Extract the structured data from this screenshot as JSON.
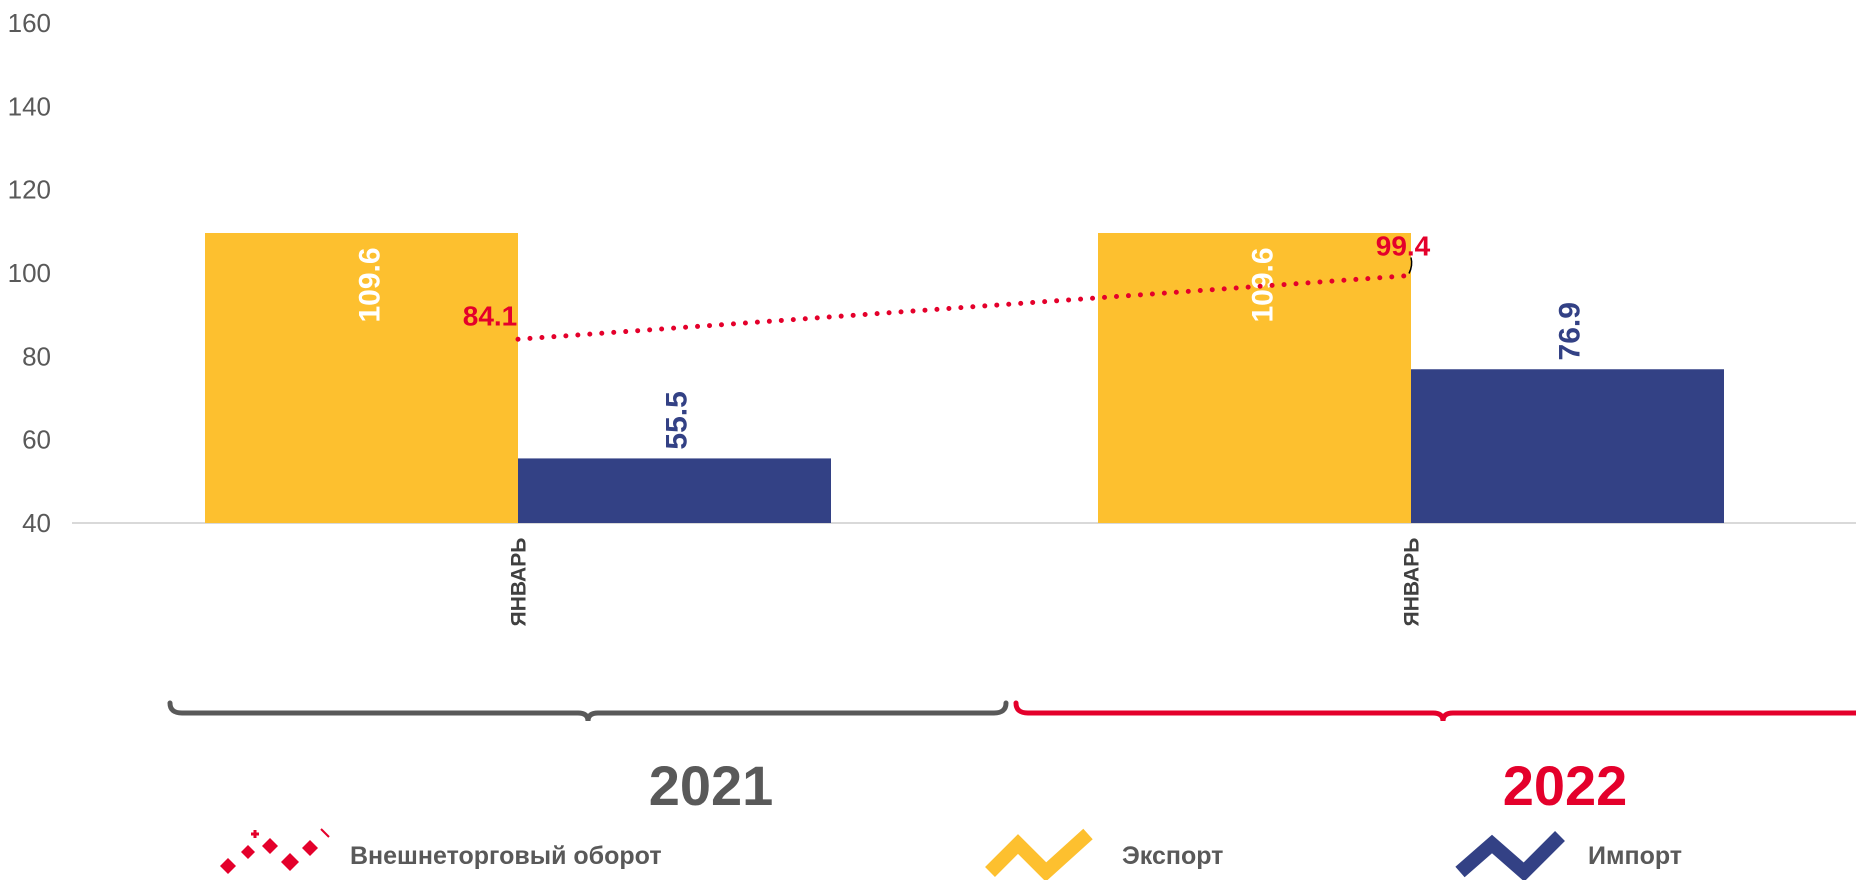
{
  "chart_data": {
    "type": "bar",
    "title": "",
    "xlabel": "",
    "ylabel": "",
    "ylim": [
      40,
      160
    ],
    "yticks": [
      40,
      60,
      80,
      100,
      120,
      140,
      160
    ],
    "grid": false,
    "legend_position": "bottom",
    "groups": [
      {
        "year": "2021",
        "category": "ЯНВАРЬ"
      },
      {
        "year": "2022",
        "category": "ЯНВАРЬ"
      }
    ],
    "series": [
      {
        "name": "Экспорт",
        "type": "bar",
        "color": "#FDC02F",
        "values": [
          109.6,
          109.6
        ],
        "labels": [
          "109.6",
          "109.6"
        ]
      },
      {
        "name": "Импорт",
        "type": "bar",
        "color": "#334185",
        "values": [
          55.5,
          76.9
        ],
        "labels": [
          "55.5",
          "76.9"
        ]
      },
      {
        "name": "Внешнеторговый оборот",
        "type": "line",
        "style": "dotted",
        "color": "#E4002B",
        "values": [
          84.1,
          99.4
        ],
        "labels": [
          "84.1",
          "99.4"
        ]
      }
    ],
    "year_colors": [
      "#595959",
      "#E4002B"
    ]
  },
  "legend": {
    "turnover": {
      "label": "Внешнеторговый оборот",
      "icon": "dotted-diamond-line-icon",
      "color": "#E4002B"
    },
    "export": {
      "label": "Экспорт",
      "icon": "zigzag-line-icon",
      "color": "#FDC02F"
    },
    "import": {
      "label": "Импорт",
      "icon": "zigzag-line-icon",
      "color": "#334185"
    }
  }
}
